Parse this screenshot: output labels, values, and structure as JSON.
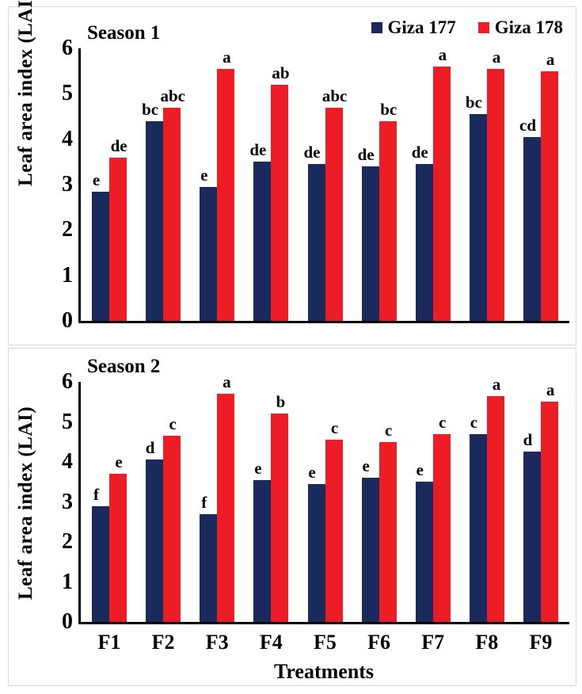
{
  "colors": {
    "giza177": "#1A2A5C",
    "giza178": "#EE1C25",
    "axis": "#000000",
    "panel_border": "#D9D9D9"
  },
  "chart_data": [
    {
      "type": "bar",
      "title": "Season 1",
      "ylabel": "Leaf area index (LAI)",
      "xlabel": "",
      "ylim": [
        0,
        6
      ],
      "yticks": [
        0,
        1,
        2,
        3,
        4,
        5,
        6
      ],
      "grid": false,
      "legend_position": "top-right",
      "legend_visible": true,
      "x_axis_labels_visible": false,
      "categories": [
        "F1",
        "F2",
        "F3",
        "F4",
        "F5",
        "F6",
        "F7",
        "F8",
        "F9"
      ],
      "series": [
        {
          "name": "Giza 177",
          "color": "#1A2A5C",
          "values": [
            2.85,
            4.4,
            2.95,
            3.5,
            3.45,
            3.4,
            3.45,
            4.55,
            4.05
          ],
          "letters": [
            "e",
            "bc",
            "e",
            "de",
            "de",
            "de",
            "de",
            "bc",
            "cd"
          ]
        },
        {
          "name": "Giza 178",
          "color": "#EE1C25",
          "values": [
            3.6,
            4.7,
            5.55,
            5.2,
            4.7,
            4.4,
            5.6,
            5.55,
            5.5
          ],
          "letters": [
            "de",
            "abc",
            "a",
            "ab",
            "abc",
            "bc",
            "a",
            "a",
            "a"
          ]
        }
      ]
    },
    {
      "type": "bar",
      "title": "Season 2",
      "ylabel": "Leaf area index (LAI)",
      "xlabel": "Treatments",
      "ylim": [
        0,
        6
      ],
      "yticks": [
        0,
        1,
        2,
        3,
        4,
        5,
        6
      ],
      "grid": false,
      "legend_position": "none",
      "legend_visible": false,
      "x_axis_labels_visible": true,
      "categories": [
        "F1",
        "F2",
        "F3",
        "F4",
        "F5",
        "F6",
        "F7",
        "F8",
        "F9"
      ],
      "series": [
        {
          "name": "Giza 177",
          "color": "#1A2A5C",
          "values": [
            2.9,
            4.05,
            2.7,
            3.55,
            3.45,
            3.6,
            3.5,
            4.7,
            4.25
          ],
          "letters": [
            "f",
            "d",
            "f",
            "e",
            "e",
            "e",
            "e",
            "c",
            "d"
          ]
        },
        {
          "name": "Giza 178",
          "color": "#EE1C25",
          "values": [
            3.7,
            4.65,
            5.7,
            5.2,
            4.55,
            4.5,
            4.7,
            5.65,
            5.5
          ],
          "letters": [
            "e",
            "c",
            "a",
            "b",
            "c",
            "c",
            "c",
            "a",
            "a"
          ]
        }
      ]
    }
  ]
}
